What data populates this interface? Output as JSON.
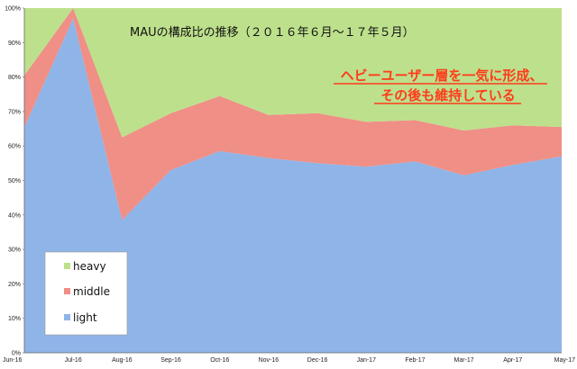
{
  "chart_data": {
    "type": "area",
    "stacked": true,
    "percent": true,
    "title": "MAUの構成比の推移（２０１６年６月〜１７年５月）",
    "xlabel": "",
    "ylabel": "",
    "categories": [
      "Jun-16",
      "Jul-16",
      "Aug-16",
      "Sep-16",
      "Oct-16",
      "Nov-16",
      "Dec-16",
      "Jan-17",
      "Feb-17",
      "Mar-17",
      "Apr-17",
      "May-17"
    ],
    "ylim": [
      0,
      100
    ],
    "yticks": [
      "0%",
      "10%",
      "20%",
      "30%",
      "40%",
      "50%",
      "60%",
      "70%",
      "80%",
      "90%",
      "100%"
    ],
    "series": [
      {
        "name": "light",
        "color": "#8fb4e8",
        "values": [
          65.5,
          97.0,
          38.5,
          53.0,
          58.5,
          56.5,
          55.0,
          54.0,
          55.5,
          51.5,
          54.5,
          57.0
        ]
      },
      {
        "name": "middle",
        "color": "#ef8f86",
        "values": [
          15.0,
          3.0,
          24.0,
          16.5,
          16.0,
          12.5,
          14.5,
          13.0,
          12.0,
          13.0,
          11.5,
          8.5
        ]
      },
      {
        "name": "heavy",
        "color": "#bde08c",
        "values": [
          19.5,
          0.0,
          37.5,
          30.5,
          25.5,
          31.0,
          30.5,
          33.0,
          32.5,
          35.5,
          34.0,
          34.5
        ]
      }
    ],
    "legend_position": "bottom-left",
    "legend_order": [
      "heavy",
      "middle",
      "light"
    ],
    "annotation_lines": [
      "ヘビーユーザー層を一気に形成、",
      "その後も維持している"
    ],
    "annotation_color": "#ff3b1a",
    "grid": false
  }
}
